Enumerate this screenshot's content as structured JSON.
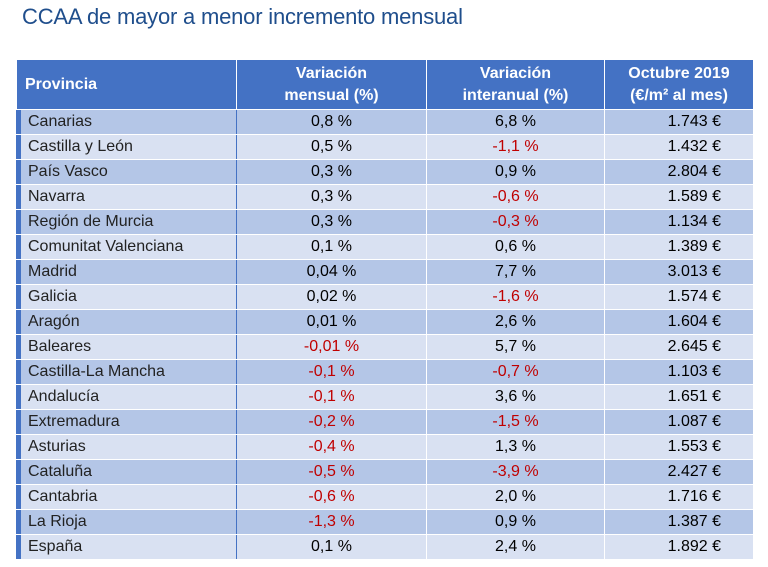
{
  "title": "CCAA de mayor a menor incremento mensual",
  "headers": {
    "provincia": "Provincia",
    "mensual_1": "Variación",
    "mensual_2": "mensual (%)",
    "interanual_1": "Variación",
    "interanual_2": "interanual (%)",
    "octubre_1": "Octubre 2019",
    "octubre_2": "(€/m² al mes)"
  },
  "colors": {
    "header_bg": "#4472c4",
    "row_odd": "#b4c6e7",
    "row_even": "#d9e1f2",
    "negative": "#c00000",
    "title": "#1f4e8c"
  },
  "rows": [
    {
      "name": "Canarias",
      "mensual": "0,8 %",
      "interanual": "6,8 %",
      "precio": "1.743 €"
    },
    {
      "name": "Castilla y León",
      "mensual": "0,5 %",
      "interanual": "-1,1 %",
      "precio": "1.432 €"
    },
    {
      "name": "País Vasco",
      "mensual": "0,3 %",
      "interanual": "0,9 %",
      "precio": "2.804 €"
    },
    {
      "name": "Navarra",
      "mensual": "0,3 %",
      "interanual": "-0,6 %",
      "precio": "1.589 €"
    },
    {
      "name": "Región de Murcia",
      "mensual": "0,3 %",
      "interanual": "-0,3 %",
      "precio": "1.134 €"
    },
    {
      "name": "Comunitat Valenciana",
      "mensual": "0,1 %",
      "interanual": "0,6 %",
      "precio": "1.389 €"
    },
    {
      "name": "Madrid",
      "mensual": "0,04 %",
      "interanual": "7,7 %",
      "precio": "3.013 €"
    },
    {
      "name": "Galicia",
      "mensual": "0,02 %",
      "interanual": "-1,6 %",
      "precio": "1.574 €"
    },
    {
      "name": "Aragón",
      "mensual": "0,01 %",
      "interanual": "2,6 %",
      "precio": "1.604 €"
    },
    {
      "name": "Baleares",
      "mensual": "-0,01 %",
      "interanual": "5,7 %",
      "precio": "2.645 €"
    },
    {
      "name": "Castilla-La Mancha",
      "mensual": "-0,1 %",
      "interanual": "-0,7 %",
      "precio": "1.103 €"
    },
    {
      "name": "Andalucía",
      "mensual": "-0,1 %",
      "interanual": "3,6 %",
      "precio": "1.651 €"
    },
    {
      "name": "Extremadura",
      "mensual": "-0,2 %",
      "interanual": "-1,5 %",
      "precio": "1.087 €"
    },
    {
      "name": "Asturias",
      "mensual": "-0,4 %",
      "interanual": "1,3 %",
      "precio": "1.553 €"
    },
    {
      "name": "Cataluña",
      "mensual": "-0,5 %",
      "interanual": "-3,9 %",
      "precio": "2.427 €"
    },
    {
      "name": "Cantabria",
      "mensual": "-0,6 %",
      "interanual": "2,0 %",
      "precio": "1.716 €"
    },
    {
      "name": "La Rioja",
      "mensual": "-1,3 %",
      "interanual": "0,9 %",
      "precio": "1.387 €"
    },
    {
      "name": "España",
      "mensual": "0,1 %",
      "interanual": "2,4 %",
      "precio": "1.892 €"
    }
  ]
}
